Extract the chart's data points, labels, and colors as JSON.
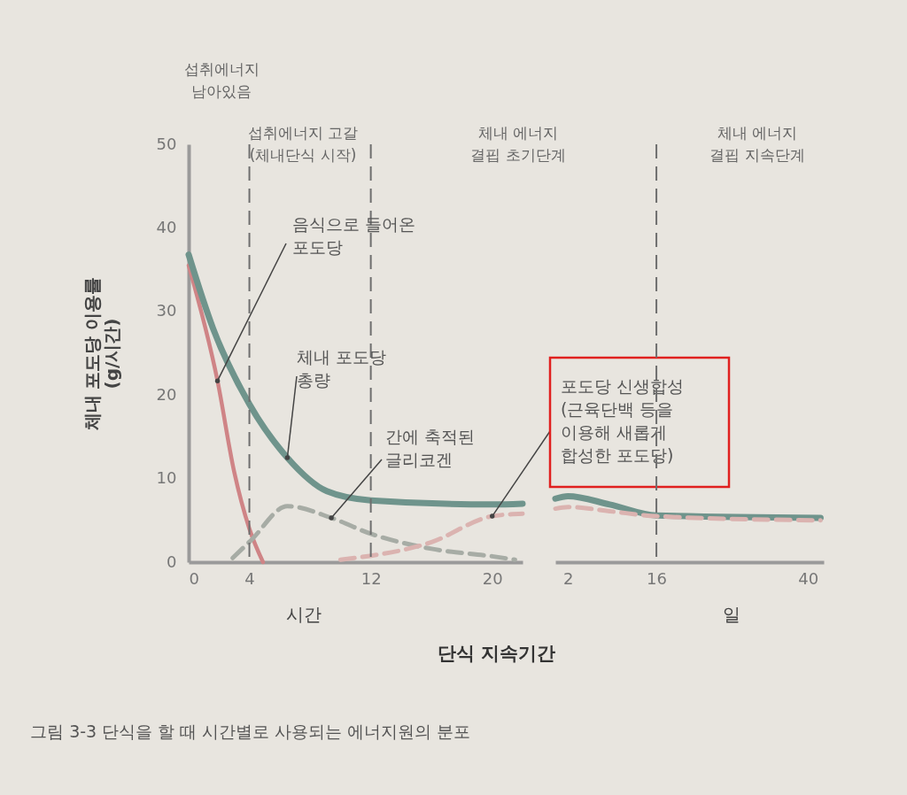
{
  "chart_data": [
    {
      "type": "line",
      "title": "그림 3-3 단식을 할 때 시간별로 사용되는 에너지원의 분포",
      "xlabel": "단식 지속기간",
      "ylabel": "체내 포도당 이용률 (g/시간)",
      "annotations": [
        "섭취에너지 남아있음",
        "섭취에너지 고갈 (체내단식 시작)",
        "시간"
      ],
      "xlim": [
        0,
        22
      ],
      "xticks": [
        0,
        4,
        12,
        20
      ],
      "ylim": [
        0,
        50
      ],
      "yticks": [
        0,
        10,
        20,
        30,
        40,
        50
      ],
      "ref_lines": [
        {
          "axis": "x",
          "value": 4,
          "line_style": "dashed",
          "color": "#6e6e6e"
        },
        {
          "axis": "x",
          "value": 12,
          "line_style": "dashed",
          "color": "#6e6e6e"
        }
      ],
      "series": [
        {
          "name": "음식으로 들어온 포도당",
          "color": "#cf8486",
          "line_style": "solid",
          "x": [
            0,
            1.9,
            3,
            4,
            4.9
          ],
          "values": [
            35.5,
            21.7,
            10.8,
            4,
            0
          ]
        },
        {
          "name": "체내 포도당 총량",
          "color": "#6f948c",
          "line_style": "solid",
          "x": [
            0,
            1.6,
            4,
            6.5,
            9.1,
            12,
            20,
            22
          ],
          "values": [
            36.8,
            28,
            18.9,
            12.5,
            8.5,
            7.4,
            6.9,
            7.0
          ]
        },
        {
          "name": "간에 축적된 글리코겐",
          "color": "#a7aca5",
          "line_style": "dashed",
          "x": [
            2.9,
            4.1,
            6.5,
            9.4,
            12,
            16,
            20,
            21.5
          ],
          "values": [
            0.5,
            2.6,
            6.7,
            5.3,
            3.4,
            1.6,
            0.7,
            0.3
          ]
        },
        {
          "name": "포도당 신생합성 (근육단백 등을 이용해 새롭게 합성한 포도당)",
          "color": "#dbb3b0",
          "line_style": "dashed",
          "x": [
            10,
            16,
            20,
            22
          ],
          "values": [
            0.3,
            2.4,
            5.5,
            5.8
          ]
        }
      ]
    },
    {
      "type": "line",
      "annotations": [
        "체내 에너지 결핍 초기단계",
        "체내 에너지 결핍 지속단계",
        "일"
      ],
      "xlim": [
        0,
        42.5
      ],
      "xticks": [
        2,
        16,
        40
      ],
      "ylim": [
        0,
        50
      ],
      "tick_labels": "x",
      "ref_lines": [
        {
          "axis": "x",
          "value": 16,
          "line_style": "dashed",
          "color": "#6e6e6e"
        }
      ],
      "series": [
        {
          "color": "#6f948c",
          "line_style": "solid",
          "x": [
            0,
            2,
            8.6,
            16,
            42
          ],
          "values": [
            7.6,
            7.9,
            6.9,
            5.6,
            5.3
          ]
        },
        {
          "color": "#dbb3b0",
          "line_style": "dashed",
          "x": [
            0,
            2,
            8.6,
            16,
            42
          ],
          "values": [
            6.4,
            6.6,
            6.1,
            5.5,
            5.0
          ]
        }
      ]
    }
  ]
}
